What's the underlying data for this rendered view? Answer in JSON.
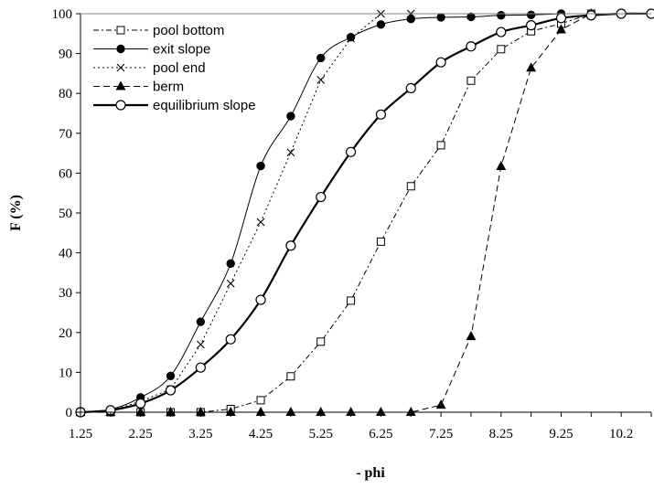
{
  "chart_data": {
    "type": "line",
    "title": "",
    "xlabel": "- phi",
    "ylabel": "F (%)",
    "x": [
      1.25,
      1.75,
      2.25,
      2.75,
      3.25,
      3.75,
      4.25,
      4.75,
      5.25,
      5.75,
      6.25,
      6.75,
      7.25,
      7.75,
      8.25,
      8.75,
      9.25,
      9.75,
      10.25,
      10.75
    ],
    "x_tick_labels": [
      "1.25",
      "2.25",
      "3.25",
      "4.25",
      "5.25",
      "6.25",
      "7.25",
      "8.25",
      "9.25",
      "10.2"
    ],
    "y_tick_labels": [
      "0",
      "10",
      "20",
      "30",
      "40",
      "50",
      "60",
      "70",
      "80",
      "90",
      "100"
    ],
    "xlim": [
      1.25,
      10.75
    ],
    "ylim": [
      0,
      100
    ],
    "grid": false,
    "legend_position": "top-left",
    "series": [
      {
        "name": "pool bottom",
        "line_style": "dash-dot",
        "marker": "open-square",
        "x": [
          1.25,
          1.75,
          2.25,
          2.75,
          3.25,
          3.75,
          4.25,
          4.75,
          5.25,
          5.75,
          6.25,
          6.75,
          7.25,
          7.75,
          8.25,
          8.75,
          9.25,
          9.75
        ],
        "values": [
          0,
          0,
          0,
          0,
          0,
          0.8,
          3,
          9,
          17.7,
          28,
          42.8,
          56.7,
          67,
          83.2,
          91.1,
          95.6,
          97.5,
          100
        ]
      },
      {
        "name": "exit slope",
        "line_style": "solid-thin",
        "marker": "filled-circle",
        "x": [
          1.25,
          1.75,
          2.25,
          2.75,
          3.25,
          3.75,
          4.25,
          4.75,
          5.25,
          5.75,
          6.25,
          6.75,
          7.25,
          7.75,
          8.25,
          8.75,
          9.25
        ],
        "values": [
          0.2,
          0.7,
          3.7,
          9.1,
          22.7,
          37.3,
          61.8,
          74.3,
          88.9,
          94.1,
          97.3,
          98.7,
          99.1,
          99.2,
          99.6,
          99.7,
          100
        ]
      },
      {
        "name": "pool end",
        "line_style": "dotted",
        "marker": "cross",
        "x": [
          1.25,
          1.75,
          2.25,
          2.75,
          3.25,
          3.75,
          4.25,
          4.75,
          5.25,
          5.75,
          6.25,
          6.75
        ],
        "values": [
          0,
          0.4,
          2.7,
          5.8,
          17,
          32.3,
          47.7,
          65.2,
          83.4,
          93.8,
          100,
          100
        ]
      },
      {
        "name": "berm",
        "line_style": "dashed",
        "marker": "filled-triangle",
        "x": [
          1.25,
          1.75,
          2.25,
          2.75,
          3.25,
          3.75,
          4.25,
          4.75,
          5.25,
          5.75,
          6.25,
          6.75,
          7.25,
          7.75,
          8.25,
          8.75,
          9.25,
          9.75
        ],
        "values": [
          0,
          0,
          0,
          0,
          0,
          0,
          0,
          0,
          0,
          0,
          0,
          0,
          1.8,
          19,
          61.7,
          86.4,
          96,
          100
        ]
      },
      {
        "name": "equilibrium slope",
        "line_style": "solid-thick",
        "marker": "open-circle",
        "x": [
          1.25,
          1.75,
          2.25,
          2.75,
          3.25,
          3.75,
          4.25,
          4.75,
          5.25,
          5.75,
          6.25,
          6.75,
          7.25,
          7.75,
          8.25,
          8.75,
          9.25,
          9.75,
          10.25,
          10.75
        ],
        "values": [
          0,
          0.5,
          2.2,
          5.5,
          11.2,
          18.3,
          28.2,
          41.8,
          54,
          65.3,
          74.7,
          81.3,
          87.8,
          91.8,
          95.4,
          97.1,
          98.9,
          99.6,
          100,
          100
        ]
      }
    ]
  }
}
